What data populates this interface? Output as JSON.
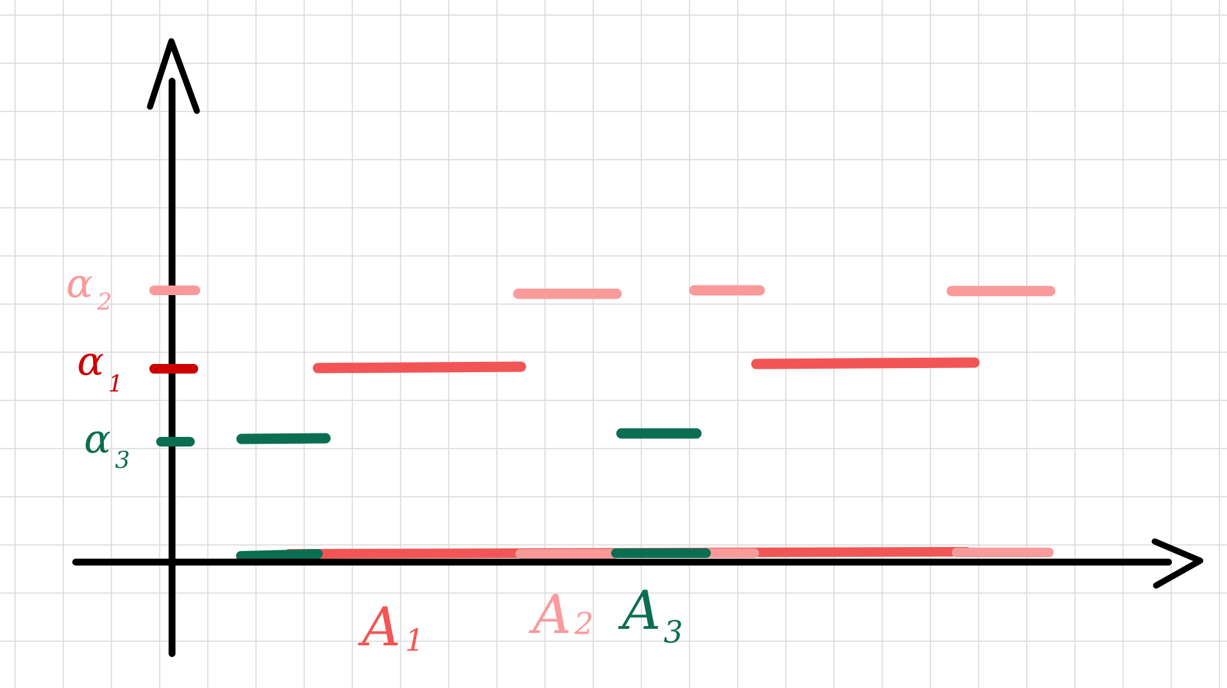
{
  "colors": {
    "grid": "#d9d9d9",
    "axis": "#000000",
    "alpha1": "#cc0000",
    "alpha1_segment": "#f25555",
    "alpha2": "#fa9a9a",
    "alpha3": "#0b6e52"
  },
  "y_labels": [
    {
      "key": "alpha2",
      "text": "α",
      "sub": "2"
    },
    {
      "key": "alpha1",
      "text": "α",
      "sub": "1"
    },
    {
      "key": "alpha3",
      "text": "α",
      "sub": "3"
    }
  ],
  "x_labels": [
    {
      "key": "A1",
      "text": "A",
      "sub": "1"
    },
    {
      "key": "A2",
      "text": "A",
      "sub": "2"
    },
    {
      "key": "A3",
      "text": "A",
      "sub": "3"
    }
  ]
}
